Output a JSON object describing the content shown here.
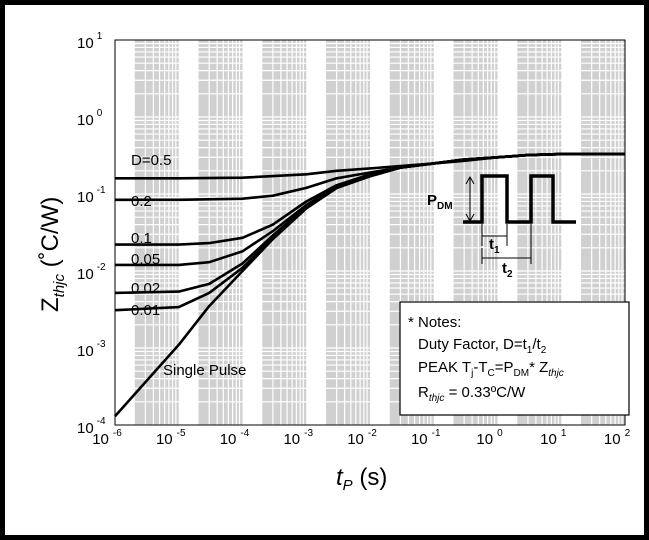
{
  "chart_data": {
    "type": "line",
    "x_scale": "log",
    "y_scale": "log",
    "xlim": [
      1e-06,
      100
    ],
    "ylim": [
      0.0001,
      10
    ],
    "grid": true,
    "xlabel": {
      "main": "t",
      "sub": "P",
      "unit": " (s)"
    },
    "ylabel": {
      "main": "Z",
      "sub": "thjc",
      "unit": " (˚C/W)"
    },
    "x_ticks": [
      {
        "base": "10",
        "exp": "-6"
      },
      {
        "base": "10",
        "exp": "-5"
      },
      {
        "base": "10",
        "exp": "-4"
      },
      {
        "base": "10",
        "exp": "-3"
      },
      {
        "base": "10",
        "exp": "-2"
      },
      {
        "base": "10",
        "exp": "-1"
      },
      {
        "base": "10",
        "exp": "0"
      },
      {
        "base": "10",
        "exp": "1"
      },
      {
        "base": "10",
        "exp": "2"
      }
    ],
    "y_ticks": [
      {
        "base": "10",
        "exp": "-4"
      },
      {
        "base": "10",
        "exp": "-3"
      },
      {
        "base": "10",
        "exp": "-2"
      },
      {
        "base": "10",
        "exp": "-1"
      },
      {
        "base": "10",
        "exp": "0"
      },
      {
        "base": "10",
        "exp": "1"
      }
    ],
    "series": [
      {
        "name": "D=0.5",
        "points": [
          [
            1e-06,
            0.16
          ],
          [
            1e-05,
            0.16
          ],
          [
            0.0001,
            0.163
          ],
          [
            0.001,
            0.18
          ],
          [
            0.003,
            0.2
          ],
          [
            0.01,
            0.215
          ],
          [
            0.03,
            0.23
          ],
          [
            0.1,
            0.25
          ],
          [
            0.3,
            0.27
          ],
          [
            1,
            0.3
          ],
          [
            3,
            0.32
          ],
          [
            10,
            0.33
          ],
          [
            100,
            0.33
          ]
        ]
      },
      {
        "name": "0.2",
        "points": [
          [
            1e-06,
            0.084
          ],
          [
            1e-05,
            0.084
          ],
          [
            0.0001,
            0.087
          ],
          [
            0.0003,
            0.095
          ],
          [
            0.001,
            0.12
          ],
          [
            0.003,
            0.16
          ],
          [
            0.01,
            0.19
          ],
          [
            0.03,
            0.22
          ],
          [
            0.1,
            0.25
          ],
          [
            0.3,
            0.28
          ],
          [
            1,
            0.3
          ],
          [
            3,
            0.32
          ],
          [
            10,
            0.33
          ],
          [
            100,
            0.33
          ]
        ]
      },
      {
        "name": "0.1",
        "points": [
          [
            1e-06,
            0.022
          ],
          [
            1e-05,
            0.022
          ],
          [
            3e-05,
            0.023
          ],
          [
            0.0001,
            0.027
          ],
          [
            0.0003,
            0.04
          ],
          [
            0.001,
            0.08
          ],
          [
            0.003,
            0.13
          ],
          [
            0.01,
            0.18
          ],
          [
            0.03,
            0.22
          ],
          [
            0.1,
            0.25
          ],
          [
            0.3,
            0.28
          ],
          [
            1,
            0.3
          ],
          [
            3,
            0.32
          ],
          [
            10,
            0.33
          ],
          [
            100,
            0.33
          ]
        ]
      },
      {
        "name": "0.05",
        "points": [
          [
            1e-06,
            0.012
          ],
          [
            1e-05,
            0.012
          ],
          [
            3e-05,
            0.013
          ],
          [
            0.0001,
            0.018
          ],
          [
            0.0003,
            0.033
          ],
          [
            0.001,
            0.072
          ],
          [
            0.003,
            0.125
          ],
          [
            0.01,
            0.175
          ],
          [
            0.03,
            0.22
          ],
          [
            0.1,
            0.25
          ],
          [
            0.3,
            0.28
          ],
          [
            1,
            0.3
          ],
          [
            3,
            0.32
          ],
          [
            10,
            0.33
          ],
          [
            100,
            0.33
          ]
        ]
      },
      {
        "name": "0.02",
        "points": [
          [
            1e-06,
            0.0052
          ],
          [
            1e-05,
            0.0054
          ],
          [
            3e-05,
            0.0068
          ],
          [
            0.0001,
            0.0125
          ],
          [
            0.0003,
            0.029
          ],
          [
            0.001,
            0.068
          ],
          [
            0.003,
            0.122
          ],
          [
            0.01,
            0.172
          ],
          [
            0.03,
            0.22
          ],
          [
            0.1,
            0.25
          ],
          [
            0.3,
            0.28
          ],
          [
            1,
            0.3
          ],
          [
            3,
            0.32
          ],
          [
            10,
            0.33
          ],
          [
            100,
            0.33
          ]
        ]
      },
      {
        "name": "0.01",
        "points": [
          [
            1e-06,
            0.0031
          ],
          [
            1e-05,
            0.0034
          ],
          [
            3e-05,
            0.0052
          ],
          [
            0.0001,
            0.011
          ],
          [
            0.0003,
            0.027
          ],
          [
            0.001,
            0.066
          ],
          [
            0.003,
            0.12
          ],
          [
            0.01,
            0.17
          ],
          [
            0.03,
            0.22
          ],
          [
            0.1,
            0.25
          ],
          [
            0.3,
            0.28
          ],
          [
            1,
            0.3
          ],
          [
            3,
            0.32
          ],
          [
            10,
            0.33
          ],
          [
            100,
            0.33
          ]
        ]
      },
      {
        "name": "Single Pulse",
        "points": [
          [
            1e-06,
            0.00013
          ],
          [
            1e-05,
            0.0011
          ],
          [
            3e-05,
            0.0035
          ],
          [
            0.0001,
            0.01
          ],
          [
            0.0003,
            0.026
          ],
          [
            0.001,
            0.065
          ],
          [
            0.003,
            0.12
          ],
          [
            0.01,
            0.17
          ],
          [
            0.03,
            0.22
          ],
          [
            0.1,
            0.25
          ],
          [
            0.3,
            0.28
          ],
          [
            1,
            0.3
          ],
          [
            3,
            0.32
          ],
          [
            10,
            0.33
          ],
          [
            100,
            0.33
          ]
        ]
      }
    ],
    "curve_labels": [
      "D=0.5",
      "0.2",
      "0.1",
      "0.05",
      "0.02",
      "0.01",
      "Single Pulse"
    ],
    "inset": {
      "pdm_main": "P",
      "pdm_sub": "DM",
      "t1_main": "t",
      "t1_sub": "1",
      "t2_main": "t",
      "t2_sub": "2"
    },
    "notes": {
      "heading": "* Notes:",
      "line1_a": "Duty Factor, D=t",
      "line1_sub1": "1",
      "line1_b": "/t",
      "line1_sub2": "2",
      "line2_a": "PEAK T",
      "line2_sub1": "j",
      "line2_b": "-T",
      "line2_sub2": "C",
      "line2_c": "=P",
      "line2_sub3": "DM",
      "line2_d": "* Z",
      "line2_sub4": "thjc",
      "line3_a": "R",
      "line3_sub1": "thjc",
      "line3_b": " = 0.33ºC/W"
    },
    "colors": {
      "band": "#d0d0d0",
      "grid": "#ffffff",
      "curve": "#000000",
      "frame": "#000000"
    }
  }
}
